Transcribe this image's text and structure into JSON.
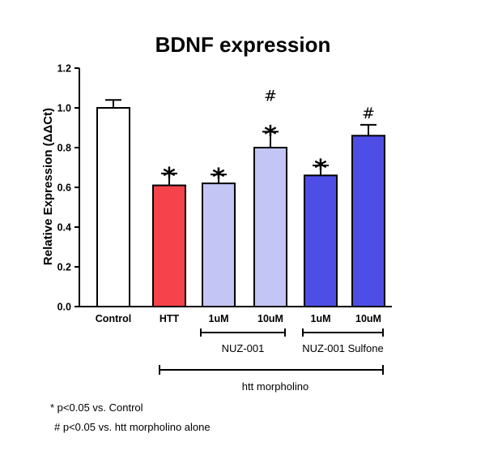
{
  "chart_data": {
    "type": "bar",
    "title": "BDNF expression",
    "ylabel": "Relative Expression  (ΔΔCt)",
    "ylim": [
      0,
      1.2
    ],
    "yticks": [
      "0.0",
      "0.2",
      "0.4",
      "0.6",
      "0.8",
      "1.0",
      "1.2"
    ],
    "categories": [
      "Control",
      "HTT",
      "1uM",
      "10uM",
      "1uM",
      "10uM"
    ],
    "values": [
      1.0,
      0.61,
      0.62,
      0.8,
      0.66,
      0.86
    ],
    "errors": [
      0.04,
      0.06,
      0.045,
      0.08,
      0.05,
      0.055
    ],
    "colors": [
      "#ffffff",
      "#f5424b",
      "#c3c6f4",
      "#c3c6f4",
      "#4e4ee6",
      "#4e4ee6"
    ],
    "stars": [
      "",
      "*",
      "*",
      "*",
      "*",
      ""
    ],
    "hashes": [
      "",
      "",
      "",
      "#",
      "",
      "#"
    ],
    "groups": [
      {
        "label": "NUZ-001",
        "from": 2,
        "to": 3
      },
      {
        "label": "NUZ-001 Sulfone",
        "from": 4,
        "to": 5
      }
    ],
    "outer_group": {
      "label": "htt morpholino",
      "from": 1,
      "to": 5
    },
    "notes": [
      "* p<0.05 vs. Control",
      "# p<0.05 vs. htt morpholino alone"
    ]
  }
}
